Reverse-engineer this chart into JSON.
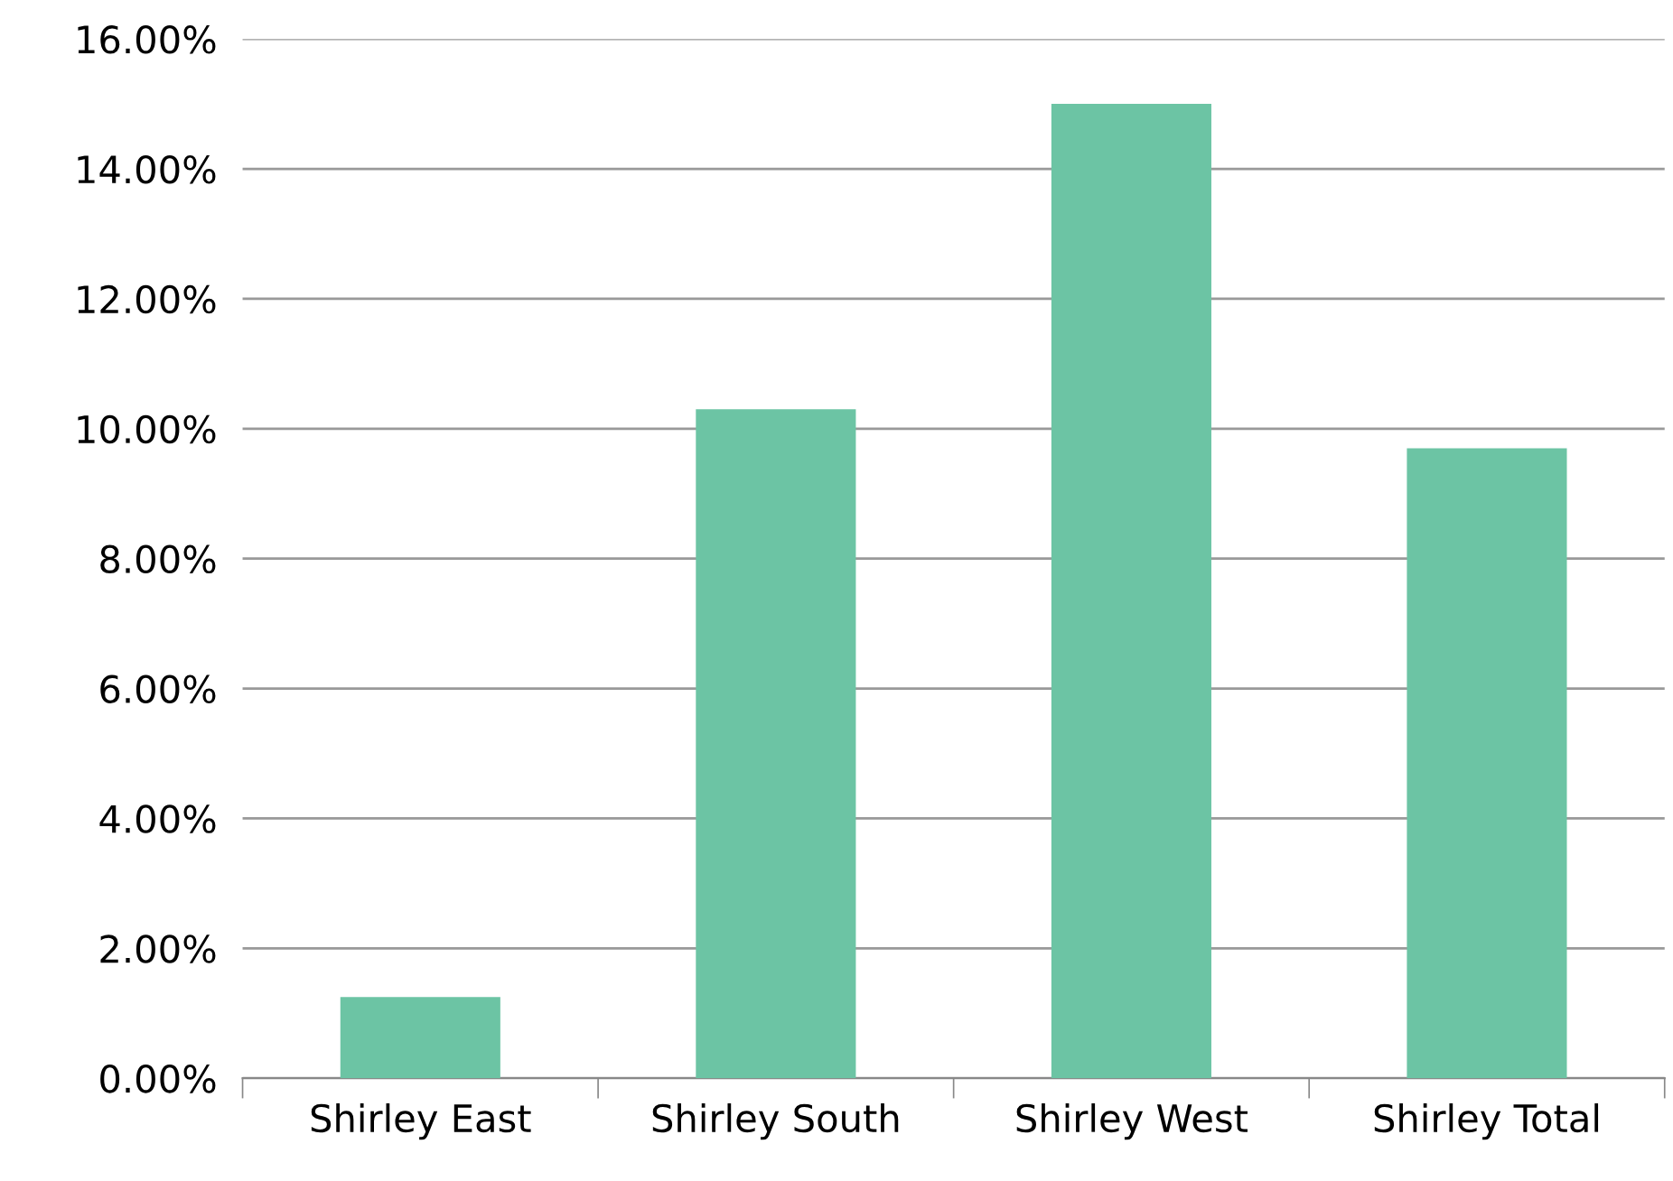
{
  "chart_data": {
    "type": "bar",
    "categories": [
      "Shirley East",
      "Shirley South",
      "Shirley West",
      "Shirley Total"
    ],
    "values": [
      1.25,
      10.3,
      15.0,
      9.7
    ],
    "color": "#6cc4a4",
    "ylim": [
      0,
      16
    ],
    "yticks": [
      {
        "value": 0,
        "label": "0.00%"
      },
      {
        "value": 2,
        "label": "2.00%"
      },
      {
        "value": 4,
        "label": "4.00%"
      },
      {
        "value": 6,
        "label": "6.00%"
      },
      {
        "value": 8,
        "label": "8.00%"
      },
      {
        "value": 10,
        "label": "10.00%"
      },
      {
        "value": 12,
        "label": "12.00%"
      },
      {
        "value": 14,
        "label": "14.00%"
      },
      {
        "value": 16,
        "label": "16.00%"
      }
    ],
    "grid": "y"
  }
}
